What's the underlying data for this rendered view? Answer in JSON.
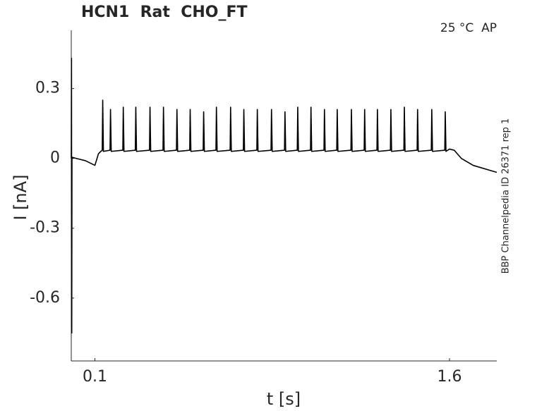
{
  "chart_data": {
    "type": "line",
    "title": "HCN1  Rat  CHO_FT",
    "annotation": "25 °C  AP",
    "side_note": "BBP Channelpedia ID 26371 rep 1",
    "xlabel": "t [s]",
    "ylabel": "I [nA]",
    "color": "#000000",
    "xlim": [
      0,
      1.8
    ],
    "ylim": [
      -0.87,
      0.55
    ],
    "xticks": [
      0.1,
      1.6
    ],
    "yticks": [
      -0.6,
      -0.3,
      0,
      0.3
    ],
    "grid": false,
    "x": [
      0,
      0.001,
      0.002,
      0.003,
      0.02,
      0.06,
      0.1,
      0.115,
      0.125,
      0.131,
      0.133,
      0.136,
      0.164,
      0.166,
      0.169,
      0.218,
      0.22,
      0.223,
      0.271,
      0.273,
      0.276,
      0.331,
      0.333,
      0.336,
      0.388,
      0.39,
      0.393,
      0.445,
      0.447,
      0.45,
      0.501,
      0.503,
      0.506,
      0.558,
      0.56,
      0.563,
      0.612,
      0.614,
      0.617,
      0.672,
      0.674,
      0.677,
      0.728,
      0.73,
      0.733,
      0.785,
      0.787,
      0.79,
      0.845,
      0.847,
      0.85,
      0.902,
      0.904,
      0.907,
      0.956,
      0.958,
      0.961,
      1.012,
      1.014,
      1.017,
      1.069,
      1.071,
      1.074,
      1.123,
      1.125,
      1.128,
      1.183,
      1.185,
      1.188,
      1.239,
      1.241,
      1.244,
      1.293,
      1.295,
      1.298,
      1.35,
      1.352,
      1.355,
      1.407,
      1.409,
      1.412,
      1.463,
      1.465,
      1.468,
      1.523,
      1.525,
      1.528,
      1.58,
      1.582,
      1.585,
      1.6,
      1.62,
      1.65,
      1.7,
      1.8
    ],
    "values": [
      0,
      0.43,
      -0.75,
      0.005,
      0,
      -0.01,
      -0.03,
      0.02,
      0.03,
      0.035,
      0.25,
      0.03,
      0.035,
      0.21,
      0.03,
      0.035,
      0.22,
      0.03,
      0.035,
      0.22,
      0.03,
      0.035,
      0.22,
      0.03,
      0.035,
      0.22,
      0.03,
      0.035,
      0.21,
      0.03,
      0.035,
      0.21,
      0.03,
      0.035,
      0.2,
      0.03,
      0.035,
      0.22,
      0.03,
      0.035,
      0.22,
      0.03,
      0.035,
      0.21,
      0.03,
      0.035,
      0.21,
      0.03,
      0.035,
      0.21,
      0.03,
      0.035,
      0.2,
      0.03,
      0.035,
      0.22,
      0.03,
      0.035,
      0.22,
      0.03,
      0.035,
      0.21,
      0.03,
      0.035,
      0.21,
      0.03,
      0.035,
      0.21,
      0.03,
      0.035,
      0.21,
      0.03,
      0.035,
      0.21,
      0.03,
      0.035,
      0.21,
      0.03,
      0.035,
      0.22,
      0.03,
      0.035,
      0.21,
      0.03,
      0.035,
      0.21,
      0.03,
      0.035,
      0.2,
      0.03,
      0.04,
      0.035,
      0,
      -0.03,
      -0.06
    ]
  }
}
